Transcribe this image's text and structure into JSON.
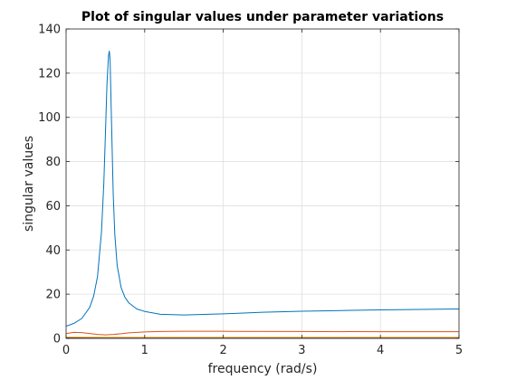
{
  "chart_data": {
    "type": "line",
    "title": "Plot of singular values under parameter variations",
    "xlabel": "frequency (rad/s)",
    "ylabel": "singular values",
    "xlim": [
      0,
      5
    ],
    "ylim": [
      0,
      140
    ],
    "xticks": [
      "0",
      "1",
      "2",
      "3",
      "4",
      "5"
    ],
    "yticks": [
      "0",
      "20",
      "40",
      "60",
      "80",
      "100",
      "120",
      "140"
    ],
    "grid": true,
    "series": [
      {
        "color": "#0072bd",
        "x": [
          0,
          0.1,
          0.2,
          0.3,
          0.35,
          0.4,
          0.45,
          0.48,
          0.5,
          0.52,
          0.54,
          0.55,
          0.56,
          0.58,
          0.6,
          0.62,
          0.65,
          0.7,
          0.75,
          0.8,
          0.9,
          1.0,
          1.2,
          1.5,
          2.0,
          2.5,
          3.0,
          3.5,
          4.0,
          4.5,
          5.0
        ],
        "y": [
          5.5,
          6.8,
          9.0,
          14.0,
          19.0,
          28.0,
          48.0,
          70.0,
          92.0,
          115.0,
          128.0,
          130.0,
          126.0,
          95.0,
          65.0,
          47.0,
          33.0,
          23.0,
          18.5,
          16.0,
          13.3,
          12.2,
          10.9,
          10.6,
          11.1,
          11.8,
          12.3,
          12.6,
          12.9,
          13.1,
          13.3
        ]
      },
      {
        "color": "#d95319",
        "x": [
          0,
          0.1,
          0.2,
          0.3,
          0.4,
          0.5,
          0.6,
          0.7,
          0.8,
          1.0,
          1.2,
          1.5,
          2.0,
          3.0,
          4.0,
          5.0
        ],
        "y": [
          2.2,
          2.7,
          2.6,
          2.2,
          1.8,
          1.6,
          1.8,
          2.1,
          2.5,
          2.9,
          3.1,
          3.2,
          3.2,
          3.1,
          3.0,
          3.0
        ]
      },
      {
        "color": "#edb120",
        "x": [
          0,
          0.5,
          1.0,
          2.0,
          3.0,
          4.0,
          5.0
        ],
        "y": [
          0.6,
          0.5,
          0.5,
          0.5,
          0.5,
          0.5,
          0.5
        ]
      },
      {
        "color": "#7e2f8e",
        "x": [
          0,
          0.5,
          1.0,
          2.0,
          3.0,
          4.0,
          5.0
        ],
        "y": [
          0.3,
          0.3,
          0.3,
          0.3,
          0.3,
          0.3,
          0.3
        ]
      },
      {
        "color": "#77ac30",
        "x": [
          0,
          0.5,
          1.0,
          2.0,
          3.0,
          4.0,
          5.0
        ],
        "y": [
          0.15,
          0.15,
          0.15,
          0.15,
          0.15,
          0.15,
          0.15
        ]
      }
    ]
  }
}
